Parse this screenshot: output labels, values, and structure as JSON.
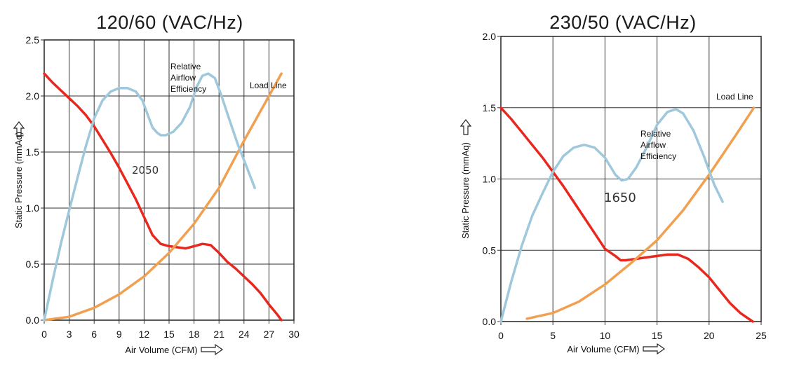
{
  "chart_data": [
    {
      "type": "line",
      "title": "120/60 (VAC/Hz)",
      "xlabel": "Air Volume (CFM)",
      "ylabel": "Static Pressure (mmAq)",
      "xlim": [
        0,
        30
      ],
      "ylim": [
        0,
        2.5
      ],
      "x_ticks": [
        0,
        3,
        6,
        9,
        12,
        15,
        18,
        21,
        24,
        27,
        30
      ],
      "x_tick_labels": [
        "0",
        "3",
        "6",
        "9",
        "12",
        "15",
        "18",
        "21",
        "24",
        "27",
        "30"
      ],
      "y_ticks": [
        0,
        0.5,
        1.0,
        1.5,
        2.0,
        2.5
      ],
      "y_tick_labels": [
        "0.0",
        "0.5",
        "1.0",
        "1.5",
        "2.0",
        "2.5"
      ],
      "grid": true,
      "series": [
        {
          "name": "2050",
          "color": "#e8281e",
          "x": [
            0,
            1,
            2,
            3,
            4,
            5,
            6,
            7,
            8,
            9,
            10,
            11,
            12,
            13,
            14,
            15,
            16,
            17,
            18,
            19,
            20,
            21,
            22,
            23,
            24,
            25,
            26,
            27,
            28,
            28.5
          ],
          "y": [
            2.2,
            2.12,
            2.05,
            1.98,
            1.91,
            1.83,
            1.73,
            1.61,
            1.49,
            1.36,
            1.22,
            1.08,
            0.92,
            0.76,
            0.68,
            0.66,
            0.65,
            0.64,
            0.66,
            0.68,
            0.67,
            0.6,
            0.52,
            0.46,
            0.39,
            0.32,
            0.24,
            0.14,
            0.05,
            0.0
          ]
        },
        {
          "name": "Load Line",
          "color": "#f0a050",
          "x": [
            0,
            3,
            6,
            9,
            12,
            15,
            18,
            21,
            24,
            27,
            28.5
          ],
          "y": [
            0.0,
            0.03,
            0.11,
            0.23,
            0.39,
            0.6,
            0.86,
            1.18,
            1.6,
            2.0,
            2.2
          ]
        },
        {
          "name": "Relative Airflow Efficiency",
          "color": "#a0c8dc",
          "x": [
            0,
            1,
            2,
            3,
            4,
            5,
            6,
            7,
            8,
            9,
            10,
            11,
            11.8,
            12.5,
            13,
            13.6,
            14,
            14.6,
            15.5,
            16.5,
            17.5,
            18.3,
            19,
            19.7,
            20.5,
            21.3,
            22.2,
            23.2,
            24.3,
            25.3
          ],
          "y": [
            0.0,
            0.35,
            0.68,
            0.98,
            1.27,
            1.55,
            1.8,
            1.96,
            2.04,
            2.07,
            2.07,
            2.04,
            1.96,
            1.82,
            1.72,
            1.67,
            1.65,
            1.65,
            1.68,
            1.76,
            1.9,
            2.08,
            2.18,
            2.2,
            2.16,
            2.0,
            1.8,
            1.58,
            1.37,
            1.18
          ]
        }
      ],
      "annotations": {
        "efficiency": [
          "Relative",
          "Airflow",
          "Efficiency"
        ],
        "load_line": "Load Line",
        "speed": "2050"
      }
    },
    {
      "type": "line",
      "title": "230/50 (VAC/Hz)",
      "xlabel": "Air Volume (CFM)",
      "ylabel": "Static Pressure (mmAq)",
      "xlim": [
        0,
        25
      ],
      "ylim": [
        0,
        2.0
      ],
      "x_ticks": [
        0,
        5,
        10,
        15,
        20,
        25
      ],
      "x_tick_labels": [
        "0",
        "5",
        "10",
        "15",
        "20",
        "25"
      ],
      "y_ticks": [
        0,
        0.5,
        1.0,
        1.5,
        2.0
      ],
      "y_tick_labels": [
        "0.0",
        "0.5",
        "1.0",
        "1.5",
        "2.0"
      ],
      "grid": true,
      "series": [
        {
          "name": "1650",
          "color": "#e8281e",
          "x": [
            0,
            1,
            2,
            3,
            4,
            5,
            6,
            7,
            8,
            9,
            10,
            11,
            11.5,
            12,
            13,
            14,
            15,
            16,
            17,
            18,
            19,
            20,
            21,
            22,
            23,
            24.2
          ],
          "y": [
            1.5,
            1.42,
            1.33,
            1.24,
            1.15,
            1.05,
            0.95,
            0.84,
            0.73,
            0.62,
            0.51,
            0.46,
            0.43,
            0.43,
            0.44,
            0.45,
            0.46,
            0.47,
            0.47,
            0.44,
            0.38,
            0.31,
            0.22,
            0.13,
            0.06,
            0.0
          ]
        },
        {
          "name": "Load Line",
          "color": "#f0a050",
          "x": [
            2.5,
            5,
            7.5,
            10,
            12.5,
            15,
            17.5,
            20,
            22.5,
            24.3
          ],
          "y": [
            0.02,
            0.06,
            0.14,
            0.26,
            0.41,
            0.57,
            0.78,
            1.03,
            1.3,
            1.5
          ]
        },
        {
          "name": "Relative Airflow Efficiency",
          "color": "#a0c8dc",
          "x": [
            0,
            1,
            2,
            3,
            4,
            5,
            6,
            7,
            8,
            9,
            10,
            11,
            11.6,
            12.2,
            13,
            14,
            15,
            16,
            16.8,
            17.5,
            18.5,
            19.5,
            20.5,
            21.3
          ],
          "y": [
            0.0,
            0.28,
            0.53,
            0.74,
            0.9,
            1.05,
            1.16,
            1.22,
            1.24,
            1.22,
            1.15,
            1.03,
            0.99,
            1.0,
            1.08,
            1.22,
            1.38,
            1.47,
            1.49,
            1.46,
            1.34,
            1.16,
            0.96,
            0.84
          ]
        }
      ],
      "annotations": {
        "efficiency": [
          "Relative",
          "Airflow",
          "Efficiency"
        ],
        "load_line": "Load Line",
        "speed": "1650"
      }
    }
  ]
}
